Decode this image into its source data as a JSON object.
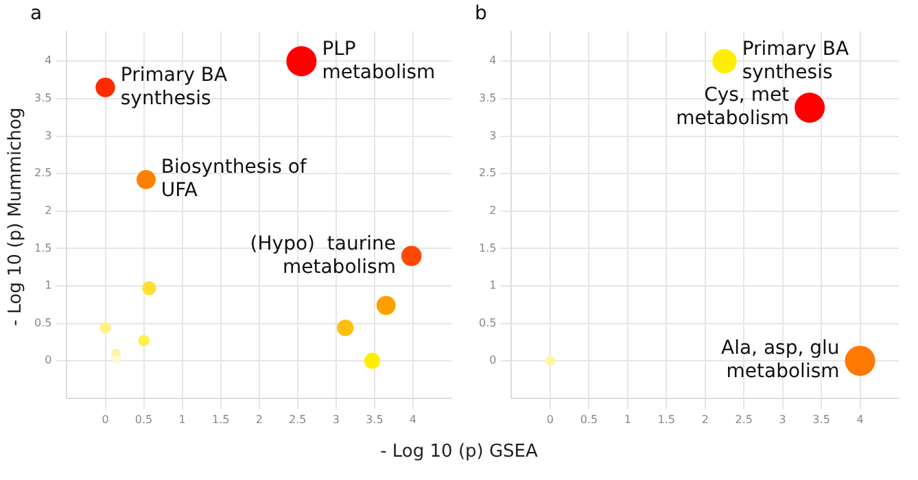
{
  "chart_data": [
    {
      "type": "bubble",
      "title": "a",
      "xlabel": "- Log 10 (p) GSEA",
      "ylabel": "- Log 10 (p) Mummichog",
      "x": [
        2.55,
        0,
        0.53,
        3.98,
        0.57,
        0,
        0.5,
        0.14,
        0.15,
        3.12,
        3.65,
        3.47
      ],
      "values": [
        4.0,
        3.65,
        2.42,
        1.4,
        0.97,
        0.44,
        0.27,
        0.1,
        0.02,
        0.44,
        0.74,
        0
      ],
      "sizes": [
        1,
        0.42,
        0.4,
        0.45,
        0.22,
        0.14,
        0.14,
        0.1,
        0.08,
        0.3,
        0.4,
        0.28
      ],
      "colors": [
        "#ff0000",
        "#ff2a00",
        "#ff8000",
        "#ff4800",
        "#ffe030",
        "#fff280",
        "#fff04a",
        "#fff3a8",
        "#fffad0",
        "#ffbf10",
        "#ffa000",
        "#ffee00"
      ],
      "xlim": [
        -0.5,
        4.5
      ],
      "ylim": [
        -0.5,
        4.4
      ],
      "xticks": [
        0,
        0.5,
        1,
        1.5,
        2,
        2.5,
        3,
        3.5,
        4
      ],
      "yticks": [
        0,
        0.5,
        1,
        1.5,
        2,
        2.5,
        3,
        3.5,
        4
      ],
      "grid": true,
      "annotations": [
        {
          "text": "PLP\nmetabolism",
          "x": 2.55,
          "y": 4.0
        },
        {
          "text": "Primary BA\nsynthesis",
          "x": 0,
          "y": 3.65
        },
        {
          "text": "Biosynthesis of\nUFA",
          "x": 0.53,
          "y": 2.42
        },
        {
          "text": "(Hypo)  taurine\nmetabolism",
          "x": 3.98,
          "y": 1.4
        }
      ]
    },
    {
      "type": "bubble",
      "title": "b",
      "x": [
        2.25,
        3.35,
        4.0,
        0
      ],
      "values": [
        4.0,
        3.38,
        0,
        0
      ],
      "sizes": [
        0.65,
        1,
        1,
        0.1
      ],
      "colors": [
        "#ffee00",
        "#ff0000",
        "#ff7800",
        "#fff59a"
      ],
      "xlim": [
        -0.5,
        4.5
      ],
      "ylim": [
        -0.5,
        4.4
      ],
      "xticks": [
        0,
        0.5,
        1,
        1.5,
        2,
        2.5,
        3,
        3.5,
        4
      ],
      "yticks": [
        0,
        0.5,
        1,
        1.5,
        2,
        2.5,
        3,
        3.5,
        4
      ],
      "grid": true,
      "annotations": [
        {
          "text": "Primary BA\nsynthesis",
          "x": 2.25,
          "y": 4.0
        },
        {
          "text": "Cys, met\nmetabolism",
          "x": 3.35,
          "y": 3.38
        },
        {
          "text": "Ala, asp, glu\nmetabolism",
          "x": 4.0,
          "y": 0
        }
      ]
    }
  ]
}
